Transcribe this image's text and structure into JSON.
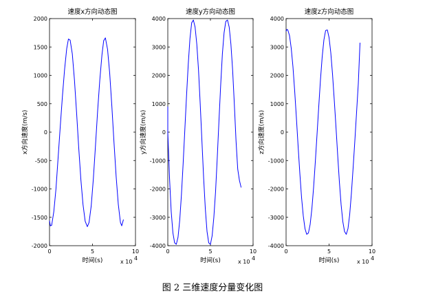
{
  "caption": "图 2  三维速度分量变化图",
  "line_color": "#0000ff",
  "chart_data": [
    {
      "type": "line",
      "title": "速度x方向动态图",
      "xlabel": "时间(s)",
      "ylabel": "x方向速度(m/s)",
      "xlim": [
        0,
        100000
      ],
      "ylim": [
        -2000,
        2000
      ],
      "x_ticks": [
        0,
        50000,
        100000
      ],
      "x_tick_labels": [
        "0",
        "5",
        "10"
      ],
      "x_multiplier": "x 10",
      "x_multiplier_exp": "4",
      "y_ticks": [
        -2000,
        -1500,
        -1000,
        -500,
        0,
        500,
        1000,
        1500,
        2000
      ],
      "series": [
        {
          "x": [
            0,
            1000,
            2500,
            5000,
            7500,
            10000,
            12500,
            15000,
            17500,
            20000,
            22000,
            24000,
            26500,
            29000,
            31500,
            34000,
            36500,
            39000,
            41500,
            44000,
            46000,
            48500,
            51000,
            53500,
            56000,
            58500,
            61000,
            63000,
            65000,
            67500,
            70000,
            72500,
            75000,
            77500,
            80000,
            82500,
            84000,
            86000
          ],
          "y": [
            -1560,
            -1650,
            -1640,
            -1400,
            -1000,
            -450,
            100,
            630,
            1100,
            1470,
            1640,
            1620,
            1380,
            920,
            340,
            -280,
            -840,
            -1280,
            -1570,
            -1665,
            -1590,
            -1300,
            -820,
            -230,
            380,
            920,
            1360,
            1610,
            1660,
            1460,
            1040,
            460,
            -180,
            -780,
            -1270,
            -1590,
            -1650,
            -1540
          ]
        }
      ]
    },
    {
      "type": "line",
      "title": "速度y方向动态图",
      "xlabel": "时间(s)",
      "ylabel": "y方向速度(m/s)",
      "xlim": [
        0,
        100000
      ],
      "ylim": [
        -4000,
        4000
      ],
      "x_ticks": [
        0,
        50000,
        100000
      ],
      "x_tick_labels": [
        "0",
        "5",
        "10"
      ],
      "x_multiplier": "x 10",
      "x_multiplier_exp": "4",
      "y_ticks": [
        -4000,
        -3000,
        -2000,
        -1000,
        0,
        1000,
        2000,
        3000,
        4000
      ],
      "series": [
        {
          "x": [
            0,
            0,
            2000,
            4000,
            6000,
            8000,
            10000,
            12000,
            14000,
            16000,
            18000,
            20000,
            22000,
            24000,
            26000,
            28000,
            30000,
            32000,
            34000,
            36000,
            38000,
            40000,
            42000,
            44000,
            46000,
            48000,
            50000,
            52000,
            54000,
            56000,
            58000,
            60000,
            62000,
            64000,
            66000,
            68000,
            70000,
            72000,
            74000,
            76000,
            78000,
            80000,
            82000,
            84000,
            86000
          ],
          "y": [
            900,
            0,
            -1600,
            -2800,
            -3550,
            -3900,
            -3950,
            -3700,
            -3100,
            -2200,
            -1100,
            100,
            1300,
            2400,
            3300,
            3850,
            3950,
            3700,
            3100,
            2200,
            1000,
            -300,
            -1600,
            -2700,
            -3500,
            -3900,
            -3950,
            -3650,
            -3000,
            -2100,
            -900,
            400,
            1650,
            2750,
            3500,
            3900,
            3950,
            3700,
            3100,
            2200,
            1000,
            -300,
            -1300,
            -1700,
            -1950
          ]
        }
      ]
    },
    {
      "type": "line",
      "title": "速度z方向动态图",
      "xlabel": "时间(s)",
      "ylabel": "z方向速度(m/s)",
      "xlim": [
        0,
        100000
      ],
      "ylim": [
        -4000,
        4000
      ],
      "x_ticks": [
        0,
        50000,
        100000
      ],
      "x_tick_labels": [
        "0",
        "5",
        "10"
      ],
      "x_multiplier": "x 10",
      "x_multiplier_exp": "4",
      "y_ticks": [
        -4000,
        -3000,
        -2000,
        -1000,
        0,
        1000,
        2000,
        3000,
        4000
      ],
      "series": [
        {
          "x": [
            0,
            1000,
            2000,
            4000,
            6000,
            8000,
            10000,
            12000,
            14000,
            16000,
            18000,
            20000,
            22000,
            24000,
            26000,
            28000,
            30000,
            32000,
            34000,
            36000,
            38000,
            40000,
            42000,
            44000,
            46000,
            48000,
            50000,
            52000,
            54000,
            56000,
            58000,
            60000,
            62000,
            64000,
            66000,
            68000,
            70000,
            72000,
            74000,
            76000,
            78000,
            80000,
            82000,
            84000,
            86000
          ],
          "y": [
            3550,
            3620,
            3600,
            3400,
            2950,
            2300,
            1450,
            500,
            -500,
            -1450,
            -2300,
            -2950,
            -3400,
            -3600,
            -3550,
            -3250,
            -2700,
            -1950,
            -1050,
            -80,
            900,
            1850,
            2650,
            3250,
            3580,
            3600,
            3330,
            2800,
            2050,
            1150,
            200,
            -800,
            -1750,
            -2550,
            -3150,
            -3500,
            -3600,
            -3400,
            -2900,
            -2150,
            -1250,
            -300,
            700,
            1700,
            3150
          ]
        }
      ]
    }
  ]
}
